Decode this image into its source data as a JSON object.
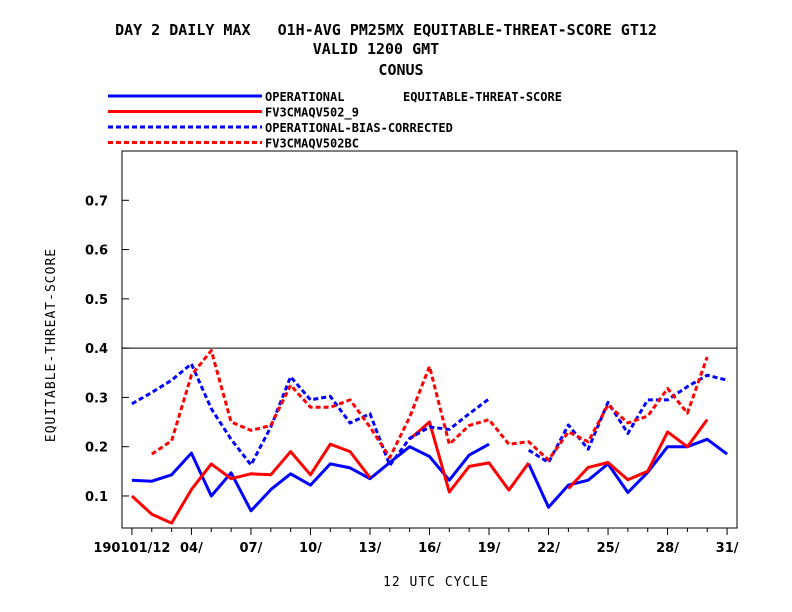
{
  "chart_data": {
    "type": "line",
    "title": "DAY 2 DAILY MAX   O1H-AVG PM25MX EQUITABLE-THREAT-SCORE GT12",
    "subtitle": "VALID 1200 GMT",
    "region": "CONUS",
    "legend_header": "EQUITABLE-THREAT-SCORE",
    "xlabel": "12 UTC CYCLE",
    "ylabel": "EQUITABLE-THREAT-SCORE",
    "ylim": [
      0.035,
      0.8
    ],
    "xlim": [
      0.5,
      31.5
    ],
    "y_ticks": [
      0.1,
      0.2,
      0.3,
      0.4,
      0.5,
      0.6,
      0.7
    ],
    "y_tick_labels": [
      "0.1",
      "0.2",
      "0.3",
      "0.4",
      "0.5",
      "0.6",
      "0.7"
    ],
    "x_ticks": [
      1,
      4,
      7,
      10,
      13,
      16,
      19,
      22,
      25,
      28,
      31
    ],
    "x_tick_labels": [
      "190101/12",
      "04/",
      "07/",
      "10/",
      "13/",
      "16/",
      "19/",
      "22/",
      "25/",
      "28/",
      "31/"
    ],
    "reference_line": 0.4,
    "legend_placement": "top",
    "series": [
      {
        "name": "OPERATIONAL",
        "color": "#0000ff",
        "dash": "solid",
        "values": [
          0.132,
          0.13,
          0.143,
          0.187,
          0.1,
          0.147,
          0.07,
          0.113,
          0.145,
          0.122,
          0.165,
          0.157,
          0.135,
          0.168,
          0.2,
          0.18,
          0.132,
          0.183,
          0.205,
          null,
          0.165,
          0.077,
          0.122,
          0.132,
          0.165,
          0.107,
          0.148,
          0.2,
          0.2,
          0.215,
          0.185
        ]
      },
      {
        "name": "FV3CMAQV502_9",
        "color": "#ff0000",
        "dash": "solid",
        "values": [
          0.1,
          0.063,
          0.045,
          0.113,
          0.165,
          0.135,
          0.145,
          0.143,
          0.19,
          0.143,
          0.205,
          0.19,
          0.137,
          null,
          0.215,
          0.25,
          0.108,
          0.16,
          0.167,
          0.112,
          0.167,
          null,
          0.115,
          0.158,
          0.168,
          0.133,
          0.15,
          0.23,
          0.2,
          0.255,
          null
        ]
      },
      {
        "name": "OPERATIONAL-BIAS-CORRECTED",
        "color": "#0000ff",
        "dash": "dashed",
        "values": [
          0.287,
          0.31,
          0.335,
          0.368,
          0.277,
          0.215,
          0.163,
          0.24,
          0.342,
          0.295,
          0.302,
          0.248,
          0.267,
          0.162,
          0.217,
          0.24,
          0.235,
          0.267,
          0.297,
          null,
          0.193,
          0.168,
          0.244,
          0.195,
          0.29,
          0.227,
          0.295,
          0.295,
          0.322,
          0.345,
          0.335
        ]
      },
      {
        "name": "FV3CMAQV502BC",
        "color": "#ff0000",
        "dash": "dashed",
        "values": [
          null,
          0.185,
          0.212,
          0.345,
          0.395,
          0.25,
          0.233,
          0.243,
          0.325,
          0.28,
          0.28,
          0.295,
          0.24,
          0.178,
          0.26,
          0.363,
          0.205,
          0.243,
          0.255,
          0.205,
          0.21,
          0.173,
          0.23,
          0.21,
          0.285,
          0.248,
          0.262,
          0.318,
          0.268,
          0.382,
          null
        ]
      }
    ]
  }
}
